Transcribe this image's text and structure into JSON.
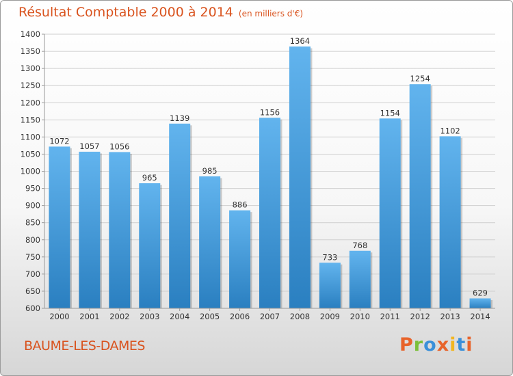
{
  "header": {
    "title": "Résultat Comptable 2000 à 2014",
    "subtitle": "(en milliers d'€)"
  },
  "footer": {
    "place": "BAUME-LES-DAMES",
    "logo": "Proxiti",
    "logo_colors": [
      "#e8632a",
      "#7bbf3a",
      "#3a8fd9",
      "#e8632a",
      "#f2b622",
      "#3a8fd9",
      "#e8632a"
    ]
  },
  "colors": {
    "bar_light": "#62b4ee",
    "bar_dark": "#2a7fc0",
    "title": "#d9531e"
  },
  "chart_data": {
    "type": "bar",
    "title": "Résultat Comptable 2000 à 2014",
    "subtitle": "(en milliers d'€)",
    "xlabel": "",
    "ylabel": "",
    "categories": [
      "2000",
      "2001",
      "2002",
      "2003",
      "2004",
      "2005",
      "2006",
      "2007",
      "2008",
      "2009",
      "2010",
      "2011",
      "2012",
      "2013",
      "2014"
    ],
    "values": [
      1072,
      1057,
      1056,
      965,
      1139,
      985,
      886,
      1156,
      1364,
      733,
      768,
      1154,
      1254,
      1102,
      629
    ],
    "ylim": [
      600,
      1400
    ],
    "yticks": [
      600,
      650,
      700,
      750,
      800,
      850,
      900,
      950,
      1000,
      1050,
      1100,
      1150,
      1200,
      1250,
      1300,
      1350,
      1400
    ],
    "grid": true,
    "data_labels": true
  }
}
